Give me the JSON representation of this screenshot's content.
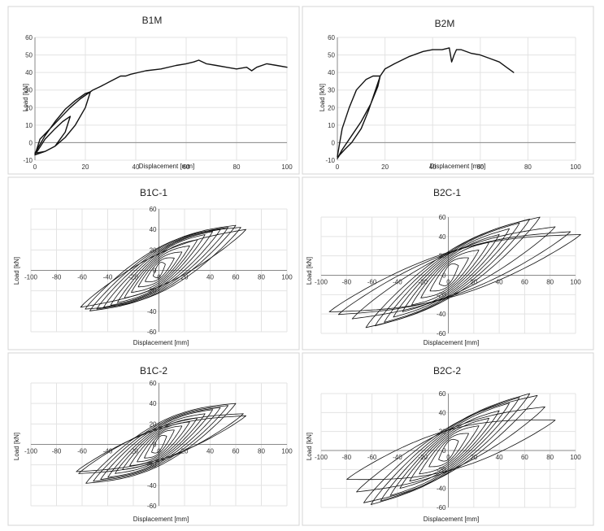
{
  "figure": {
    "colors": {
      "curve": "#111111",
      "grid": "#e3e3e3",
      "axis": "#8a8a8a",
      "frame": "#d4d4d4"
    }
  },
  "chart_data": [
    {
      "id": "B1M",
      "type": "line",
      "title": "B1M",
      "xlabel": "Displacement [mm]",
      "ylabel": "Load [kN]",
      "xlim": [
        0,
        100
      ],
      "ylim": [
        -10,
        60
      ],
      "xticks": [
        0,
        20,
        40,
        60,
        80,
        100
      ],
      "yticks": [
        -10,
        0,
        10,
        20,
        30,
        40,
        50,
        60
      ],
      "grid": true,
      "legend": "none",
      "series": [
        {
          "x": [
            0,
            4,
            8,
            11,
            14,
            12,
            8,
            4,
            0,
            4,
            8,
            12,
            16,
            20,
            22,
            20,
            16,
            12,
            8,
            4,
            0,
            2,
            6,
            10,
            14,
            18,
            21,
            23,
            26,
            30,
            34,
            36,
            38,
            44,
            50,
            56,
            60,
            63,
            65,
            68,
            72,
            76,
            80,
            84,
            86,
            88,
            92,
            96,
            100
          ],
          "y": [
            -7,
            2,
            8,
            12,
            15,
            6,
            -2,
            -5,
            -6,
            4,
            12,
            19,
            24,
            28,
            29,
            20,
            10,
            3,
            -2,
            -5,
            -7,
            2,
            8,
            14,
            20,
            25,
            28,
            30,
            32,
            35,
            38,
            38,
            39,
            41,
            42,
            44,
            45,
            46,
            47,
            45,
            44,
            43,
            42,
            43,
            41,
            43,
            45,
            44,
            43
          ]
        }
      ]
    },
    {
      "id": "B2M",
      "type": "line",
      "title": "B2M",
      "xlabel": "Displacement [mm]",
      "ylabel": "Load [kN]",
      "xlim": [
        0,
        100
      ],
      "ylim": [
        -10,
        60
      ],
      "xticks": [
        0,
        20,
        40,
        60,
        80,
        100
      ],
      "yticks": [
        -10,
        0,
        10,
        20,
        30,
        40,
        50,
        60
      ],
      "grid": true,
      "legend": "none",
      "series": [
        {
          "x": [
            0,
            1,
            2,
            5,
            8,
            12,
            15,
            18,
            16,
            13,
            10,
            6,
            3,
            1,
            0,
            2,
            6,
            10,
            14,
            17,
            18,
            20,
            24,
            30,
            36,
            40,
            44,
            47,
            48,
            49,
            50,
            52,
            56,
            60,
            64,
            68,
            71,
            74
          ],
          "y": [
            -8,
            0,
            8,
            20,
            30,
            36,
            38,
            38,
            30,
            18,
            8,
            0,
            -4,
            -7,
            -9,
            -4,
            4,
            12,
            22,
            32,
            38,
            42,
            45,
            49,
            52,
            53,
            53,
            54,
            46,
            50,
            53,
            53,
            51,
            50,
            48,
            46,
            43,
            40
          ]
        }
      ]
    },
    {
      "id": "B1C-1",
      "type": "line",
      "title": "B1C-1",
      "xlabel": "Displacement [mm]",
      "ylabel": "Load [kN]",
      "xlim": [
        -100,
        100
      ],
      "ylim": [
        -60,
        60
      ],
      "xticks": [
        -100,
        -80,
        -60,
        -40,
        -20,
        0,
        20,
        40,
        60,
        80,
        100
      ],
      "yticks": [
        -60,
        -40,
        -20,
        0,
        20,
        40,
        60
      ],
      "grid": true,
      "legend": "none",
      "cycles": [
        [
          5,
          6,
          10
        ],
        [
          12,
          12,
          12
        ],
        [
          18,
          18,
          14
        ],
        [
          24,
          24,
          16
        ],
        [
          30,
          30,
          18
        ],
        [
          36,
          35,
          20
        ],
        [
          42,
          38,
          22
        ],
        [
          48,
          40,
          24
        ],
        [
          54,
          42,
          26
        ],
        [
          60,
          44,
          28
        ],
        [
          64,
          42,
          30
        ],
        [
          68,
          40,
          20
        ]
      ],
      "asymmetry": [
        1.0,
        0.9
      ]
    },
    {
      "id": "B2C-1",
      "type": "line",
      "title": "B2C-1",
      "xlabel": "Displacement [mm]",
      "ylabel": "Load [kN]",
      "xlim": [
        -100,
        100
      ],
      "ylim": [
        -60,
        60
      ],
      "xticks": [
        -100,
        -80,
        -60,
        -40,
        -20,
        0,
        20,
        40,
        60,
        80,
        100
      ],
      "yticks": [
        -60,
        -40,
        -20,
        0,
        20,
        40,
        60
      ],
      "grid": true,
      "legend": "none",
      "cycles": [
        [
          8,
          10,
          14
        ],
        [
          16,
          18,
          16
        ],
        [
          24,
          26,
          18
        ],
        [
          32,
          34,
          20
        ],
        [
          40,
          42,
          22
        ],
        [
          48,
          48,
          24
        ],
        [
          56,
          54,
          26
        ],
        [
          64,
          58,
          28
        ],
        [
          72,
          60,
          30
        ],
        [
          84,
          50,
          28
        ],
        [
          96,
          45,
          30
        ],
        [
          104,
          42,
          32
        ]
      ],
      "asymmetry": [
        1.0,
        0.9
      ]
    },
    {
      "id": "B1C-2",
      "type": "line",
      "title": "B1C-2",
      "xlabel": "Displacement [mm]",
      "ylabel": "Load [kN]",
      "xlim": [
        -100,
        100
      ],
      "ylim": [
        -60,
        60
      ],
      "xticks": [
        -100,
        -80,
        -60,
        -40,
        -20,
        0,
        20,
        40,
        60,
        80,
        100
      ],
      "yticks": [
        -60,
        -40,
        -20,
        0,
        20,
        40,
        60
      ],
      "grid": true,
      "legend": "none",
      "cycles": [
        [
          6,
          8,
          10
        ],
        [
          12,
          14,
          12
        ],
        [
          18,
          18,
          14
        ],
        [
          24,
          22,
          16
        ],
        [
          30,
          26,
          18
        ],
        [
          36,
          30,
          20
        ],
        [
          42,
          34,
          22
        ],
        [
          48,
          36,
          24
        ],
        [
          54,
          38,
          26
        ],
        [
          60,
          40,
          28
        ],
        [
          66,
          30,
          22
        ],
        [
          68,
          28,
          20
        ]
      ],
      "asymmetry": [
        1.0,
        0.95
      ]
    },
    {
      "id": "B2C-2",
      "type": "line",
      "title": "B2C-2",
      "xlabel": "Displacement [mm]",
      "ylabel": "Load [kN]",
      "xlim": [
        -100,
        100
      ],
      "ylim": [
        -60,
        60
      ],
      "xticks": [
        -100,
        -80,
        -60,
        -40,
        -20,
        0,
        20,
        40,
        60,
        80,
        100
      ],
      "yticks": [
        -60,
        -40,
        -20,
        0,
        20,
        40,
        60
      ],
      "grid": true,
      "legend": "none",
      "cycles": [
        [
          8,
          10,
          14
        ],
        [
          16,
          18,
          16
        ],
        [
          24,
          26,
          18
        ],
        [
          32,
          34,
          20
        ],
        [
          40,
          42,
          22
        ],
        [
          48,
          50,
          24
        ],
        [
          56,
          56,
          26
        ],
        [
          64,
          60,
          28
        ],
        [
          70,
          58,
          30
        ],
        [
          76,
          46,
          28
        ],
        [
          84,
          32,
          30
        ]
      ],
      "asymmetry": [
        1.0,
        0.95
      ]
    }
  ]
}
